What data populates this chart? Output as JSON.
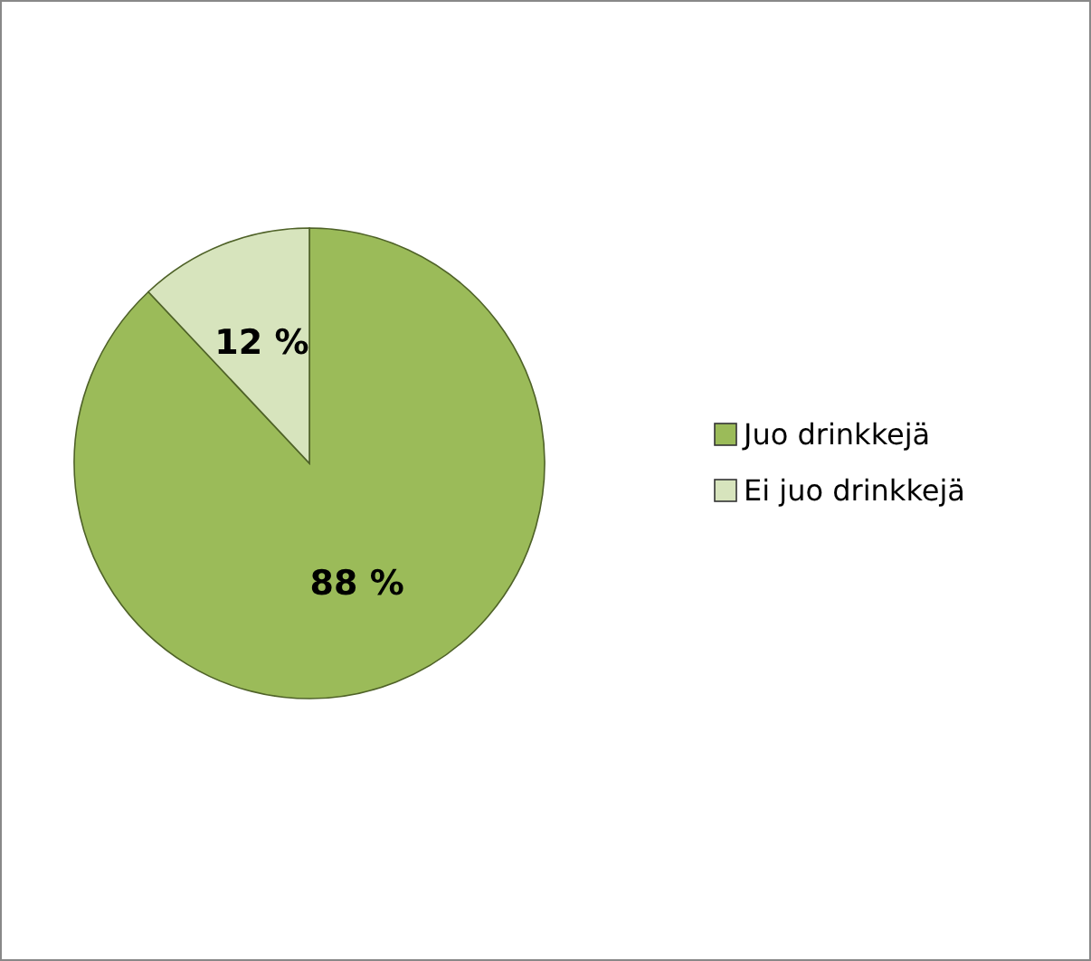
{
  "chart_data": {
    "type": "pie",
    "categories": [
      "Juo drinkkejä",
      "Ei juo drinkkejä"
    ],
    "values": [
      88,
      12
    ],
    "colors": [
      "#9bbb59",
      "#d7e4bd"
    ],
    "value_labels": [
      "88 %",
      "12 %"
    ],
    "legend": "right"
  }
}
